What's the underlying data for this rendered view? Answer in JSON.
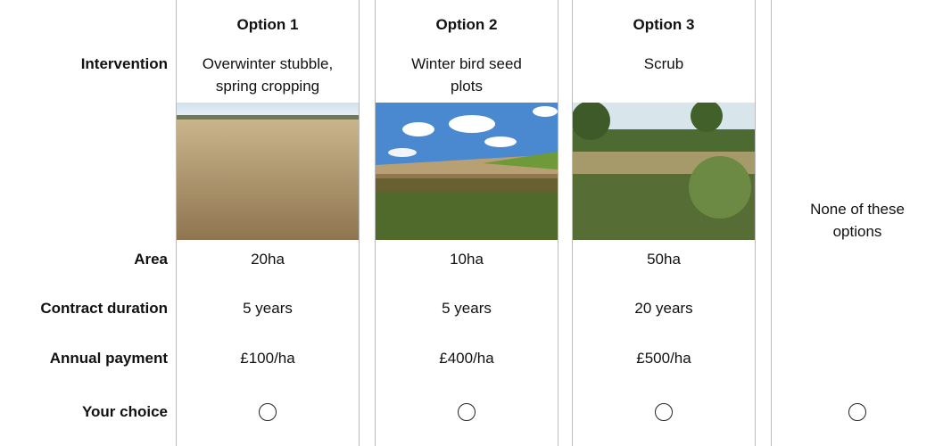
{
  "row_labels": {
    "intervention": "Intervention",
    "area": "Area",
    "duration": "Contract duration",
    "payment": "Annual payment",
    "choice": "Your choice"
  },
  "options": [
    {
      "header": "Option 1",
      "intervention": [
        "Overwinter stubble,",
        "spring cropping"
      ],
      "area": "20ha",
      "duration": "5 years",
      "payment": "£100/ha"
    },
    {
      "header": "Option 2",
      "intervention": [
        "Winter bird seed",
        "plots"
      ],
      "area": "10ha",
      "duration": "5 years",
      "payment": "£400/ha"
    },
    {
      "header": "Option 3",
      "intervention": [
        "Scrub"
      ],
      "area": "50ha",
      "duration": "20 years",
      "payment": "£500/ha"
    }
  ],
  "none_option": {
    "label": [
      "None of these",
      "options"
    ]
  }
}
